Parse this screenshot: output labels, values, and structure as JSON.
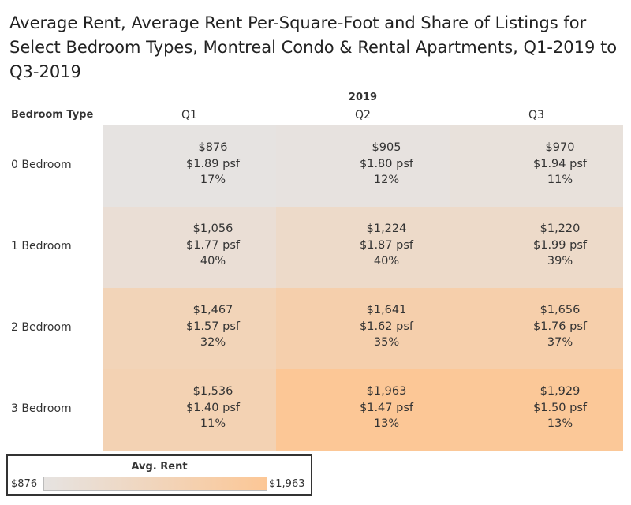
{
  "title": "Average Rent, Average Rent Per-Square-Foot and Share of Listings for Select Bedroom Types, Montreal Condo & Rental Apartments, Q1-2019 to Q3-2019",
  "chart_data": {
    "type": "table",
    "year_label": "2019",
    "row_header": "Bedroom Type",
    "columns": [
      "Q1",
      "Q2",
      "Q3"
    ],
    "rows": [
      {
        "label": "0 Bedroom",
        "cells": [
          {
            "rent": "$876",
            "rent_value": 876,
            "psf": "$1.89 psf",
            "share": "17%"
          },
          {
            "rent": "$905",
            "rent_value": 905,
            "psf": "$1.80 psf",
            "share": "12%"
          },
          {
            "rent": "$970",
            "rent_value": 970,
            "psf": "$1.94 psf",
            "share": "11%"
          }
        ]
      },
      {
        "label": "1 Bedroom",
        "cells": [
          {
            "rent": "$1,056",
            "rent_value": 1056,
            "psf": "$1.77 psf",
            "share": "40%"
          },
          {
            "rent": "$1,224",
            "rent_value": 1224,
            "psf": "$1.87 psf",
            "share": "40%"
          },
          {
            "rent": "$1,220",
            "rent_value": 1220,
            "psf": "$1.99 psf",
            "share": "39%"
          }
        ]
      },
      {
        "label": "2 Bedroom",
        "cells": [
          {
            "rent": "$1,467",
            "rent_value": 1467,
            "psf": "$1.57 psf",
            "share": "32%"
          },
          {
            "rent": "$1,641",
            "rent_value": 1641,
            "psf": "$1.62 psf",
            "share": "35%"
          },
          {
            "rent": "$1,656",
            "rent_value": 1656,
            "psf": "$1.76 psf",
            "share": "37%"
          }
        ]
      },
      {
        "label": "3 Bedroom",
        "cells": [
          {
            "rent": "$1,536",
            "rent_value": 1536,
            "psf": "$1.40 psf",
            "share": "11%"
          },
          {
            "rent": "$1,963",
            "rent_value": 1963,
            "psf": "$1.47 psf",
            "share": "13%"
          },
          {
            "rent": "$1,929",
            "rent_value": 1929,
            "psf": "$1.50 psf",
            "share": "13%"
          }
        ]
      }
    ],
    "color_scale": {
      "min_value": 876,
      "max_value": 1963,
      "min_color": "#e6e3e1",
      "max_color": "#fcc796"
    }
  },
  "legend": {
    "title": "Avg. Rent",
    "min_label": "$876",
    "max_label": "$1,963"
  }
}
